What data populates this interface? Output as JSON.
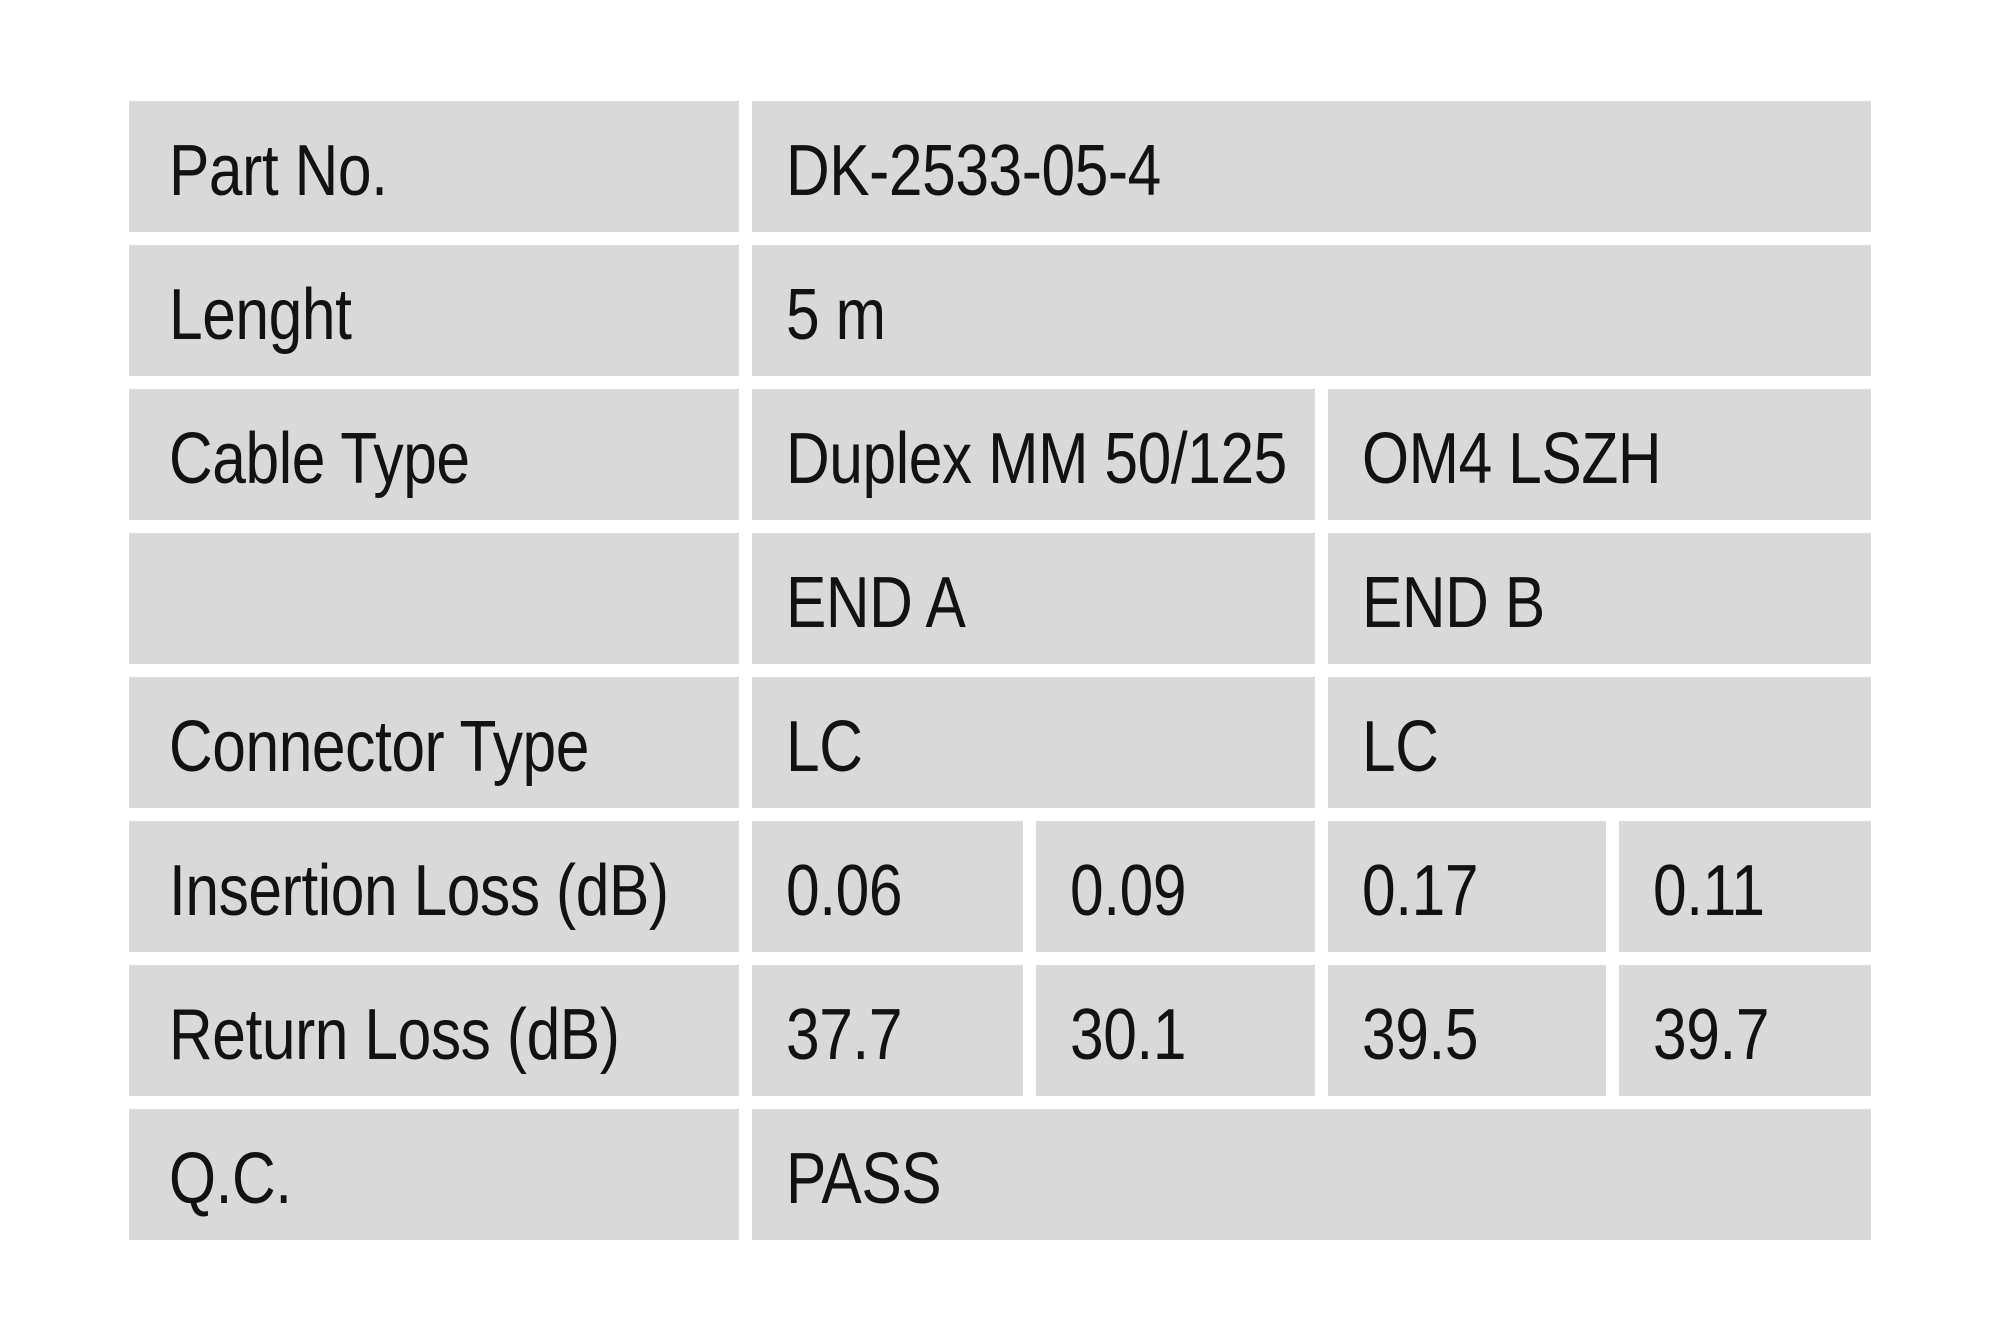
{
  "colors": {
    "page_bg": "#ffffff",
    "cell_bg": "#d9d9d9",
    "text": "#121212"
  },
  "table": {
    "rows": [
      {
        "key": "part-no",
        "label": "Part No.",
        "cells": [
          {
            "text": "DK-2533-05-4",
            "span": 4
          }
        ]
      },
      {
        "key": "lenght",
        "label": "Lenght",
        "cells": [
          {
            "text": "5 m",
            "span": 4
          }
        ]
      },
      {
        "key": "cable-type",
        "label": "Cable Type",
        "cells": [
          {
            "text": "Duplex MM 50/125",
            "span": 2
          },
          {
            "text": "OM4 LSZH",
            "span": 2
          }
        ]
      },
      {
        "key": "ends-header",
        "label": "",
        "cells": [
          {
            "text": "END A",
            "span": 2
          },
          {
            "text": "END B",
            "span": 2
          }
        ]
      },
      {
        "key": "connector-type",
        "label": "Connector Type",
        "cells": [
          {
            "text": "LC",
            "span": 2
          },
          {
            "text": "LC",
            "span": 2
          }
        ]
      },
      {
        "key": "insertion-loss",
        "label": "Insertion Loss (dB)",
        "cells": [
          {
            "text": "0.06",
            "span": 1
          },
          {
            "text": "0.09",
            "span": 1
          },
          {
            "text": "0.17",
            "span": 1
          },
          {
            "text": "0.11",
            "span": 1
          }
        ]
      },
      {
        "key": "return-loss",
        "label": "Return Loss (dB)",
        "cells": [
          {
            "text": "37.7",
            "span": 1
          },
          {
            "text": "30.1",
            "span": 1
          },
          {
            "text": "39.5",
            "span": 1
          },
          {
            "text": "39.7",
            "span": 1
          }
        ]
      },
      {
        "key": "qc",
        "label": "Q.C.",
        "cells": [
          {
            "text": "PASS",
            "span": 4
          }
        ]
      }
    ]
  }
}
